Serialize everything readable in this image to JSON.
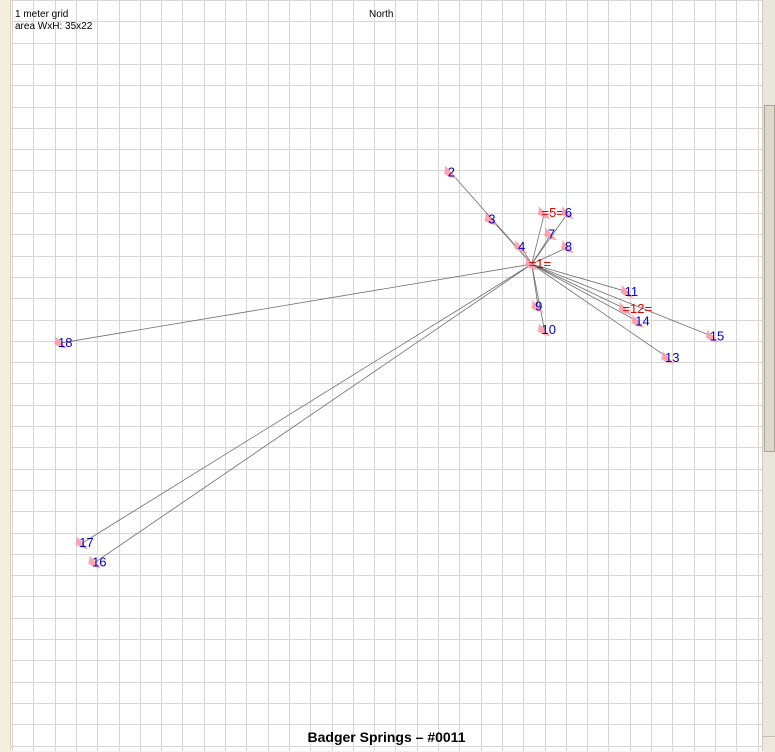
{
  "header": {
    "grid_label": "1 meter grid",
    "area_label": "area WxH: 35x22",
    "north_label": "North"
  },
  "title": "Badger Springs – #0011",
  "colors": {
    "grid": "#d6d6d6",
    "connector": "#6e6e6e",
    "marker": "#ff9aa6",
    "label_blue": "#0000cc",
    "label_red": "#e00000",
    "background": "#ffffff"
  },
  "points": [
    {
      "id": "1",
      "label": "=1=",
      "hub": true,
      "x": 24.4,
      "y": 12.4
    },
    {
      "id": "2",
      "label": "2",
      "x": 20.6,
      "y": 8.1
    },
    {
      "id": "3",
      "label": "3",
      "x": 22.5,
      "y": 10.3
    },
    {
      "id": "4",
      "label": "4",
      "x": 23.9,
      "y": 11.6
    },
    {
      "id": "5",
      "label": "=5=",
      "hub": true,
      "x": 25.0,
      "y": 10.0
    },
    {
      "id": "6",
      "label": "6",
      "x": 26.1,
      "y": 10.0
    },
    {
      "id": "7",
      "label": "7",
      "x": 25.3,
      "y": 11.0
    },
    {
      "id": "8",
      "label": "8",
      "x": 26.1,
      "y": 11.6
    },
    {
      "id": "9",
      "label": "9",
      "x": 24.7,
      "y": 14.4
    },
    {
      "id": "10",
      "label": "10",
      "x": 25.0,
      "y": 15.5
    },
    {
      "id": "11",
      "label": "11",
      "x": 28.9,
      "y": 13.7
    },
    {
      "id": "12",
      "label": "=12=",
      "hub": true,
      "x": 28.8,
      "y": 14.5
    },
    {
      "id": "13",
      "label": "13",
      "x": 30.8,
      "y": 16.8
    },
    {
      "id": "14",
      "label": "14",
      "x": 29.4,
      "y": 15.1
    },
    {
      "id": "15",
      "label": "15",
      "x": 32.9,
      "y": 15.8
    },
    {
      "id": "16",
      "label": "16",
      "x": 3.9,
      "y": 26.4
    },
    {
      "id": "17",
      "label": "17",
      "x": 3.3,
      "y": 25.5
    },
    {
      "id": "18",
      "label": "18",
      "x": 2.3,
      "y": 16.1
    }
  ],
  "links": [
    [
      "1",
      "2"
    ],
    [
      "1",
      "3"
    ],
    [
      "1",
      "4"
    ],
    [
      "1",
      "5"
    ],
    [
      "1",
      "6"
    ],
    [
      "1",
      "7"
    ],
    [
      "1",
      "8"
    ],
    [
      "1",
      "9"
    ],
    [
      "1",
      "10"
    ],
    [
      "1",
      "11"
    ],
    [
      "1",
      "12"
    ],
    [
      "1",
      "13"
    ],
    [
      "1",
      "14"
    ],
    [
      "1",
      "15"
    ],
    [
      "1",
      "16"
    ],
    [
      "1",
      "17"
    ],
    [
      "1",
      "18"
    ]
  ]
}
